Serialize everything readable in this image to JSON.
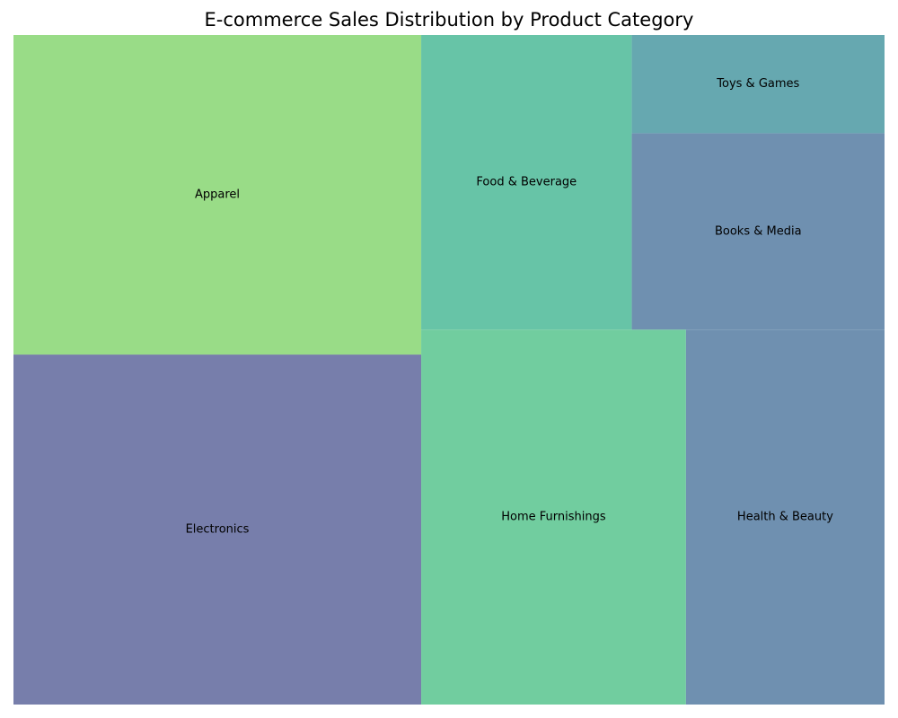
{
  "chart_data": {
    "type": "treemap",
    "title": "E-commerce Sales Distribution by Product Category",
    "items": [
      {
        "label": "Electronics",
        "value": 23,
        "color": "#777eab"
      },
      {
        "label": "Apparel",
        "value": 21,
        "color": "#99dc87"
      },
      {
        "label": "Home Furnishings",
        "value": 16,
        "color": "#71cd9f"
      },
      {
        "label": "Health & Beauty",
        "value": 12,
        "color": "#6f90b0"
      },
      {
        "label": "Food & Beverage",
        "value": 10,
        "color": "#67c4a7"
      },
      {
        "label": "Books & Media",
        "value": 8,
        "color": "#6f90b0"
      },
      {
        "label": "Toys & Games",
        "value": 4,
        "color": "#66a8b0"
      }
    ]
  }
}
